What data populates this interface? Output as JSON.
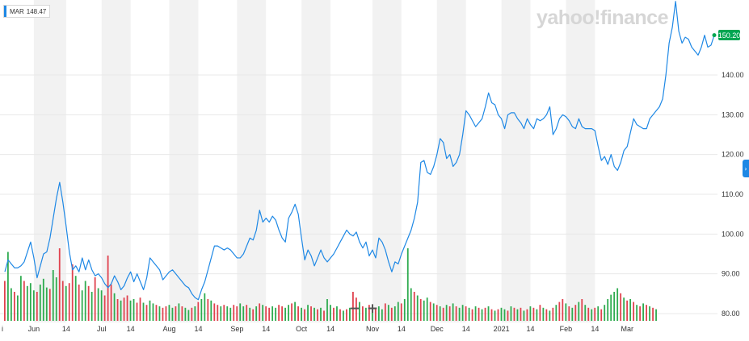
{
  "legend": {
    "symbol": "MAR",
    "value": "148.47"
  },
  "watermark": "yahoo!finance",
  "current_price": "150.20",
  "controls": {
    "zoom_out": "−",
    "zoom_in": "+",
    "expand": "›"
  },
  "colors": {
    "line": "#1e88e5",
    "vol_up": "#2eab4f",
    "vol_down": "#e0424e",
    "band": "#f2f2f2",
    "price_tag": "#00a651"
  },
  "chart_data": {
    "type": "line",
    "title": "",
    "xlabel": "",
    "ylabel": "",
    "ylim": [
      77,
      159
    ],
    "y_ticks": [
      "80.00",
      "90.00",
      "100.00",
      "110.00",
      "120.00",
      "130.00",
      "140.00"
    ],
    "x_ticks": [
      {
        "label": "i",
        "i": 0
      },
      {
        "label": "Jun",
        "i": 9
      },
      {
        "label": "14",
        "i": 19
      },
      {
        "label": "Jul",
        "i": 30
      },
      {
        "label": "14",
        "i": 39
      },
      {
        "label": "Aug",
        "i": 51
      },
      {
        "label": "14",
        "i": 60
      },
      {
        "label": "Sep",
        "i": 72
      },
      {
        "label": "14",
        "i": 81
      },
      {
        "label": "Oct",
        "i": 92
      },
      {
        "label": "14",
        "i": 101
      },
      {
        "label": "Nov",
        "i": 114
      },
      {
        "label": "14",
        "i": 123
      },
      {
        "label": "Dec",
        "i": 134
      },
      {
        "label": "14",
        "i": 143
      },
      {
        "label": "2021",
        "i": 154
      },
      {
        "label": "14",
        "i": 163
      },
      {
        "label": "Feb",
        "i": 174
      },
      {
        "label": "14",
        "i": 183
      },
      {
        "label": "Mar",
        "i": 193
      }
    ],
    "series": [
      {
        "values": [
          90.5,
          93.5,
          92.5,
          91.5,
          91.5,
          92.0,
          93.0,
          95.5,
          98.0,
          94.0,
          89.0,
          92.0,
          95.0,
          95.5,
          99.0,
          104.0,
          109.0,
          113.0,
          108.0,
          102.0,
          95.5,
          91.0,
          92.0,
          90.5,
          94.0,
          91.0,
          93.5,
          91.0,
          89.5,
          90.0,
          89.0,
          87.5,
          86.5,
          87.5,
          89.5,
          88.0,
          86.0,
          87.0,
          89.0,
          90.5,
          88.0,
          90.0,
          88.0,
          86.0,
          89.0,
          94.0,
          93.0,
          92.0,
          91.0,
          88.5,
          89.5,
          90.5,
          91.0,
          90.0,
          89.0,
          88.0,
          87.0,
          86.5,
          85.0,
          84.0,
          83.5,
          86.0,
          88.0,
          91.0,
          94.0,
          97.0,
          97.0,
          96.5,
          96.0,
          96.5,
          96.0,
          95.0,
          94.0,
          94.0,
          95.0,
          97.0,
          99.0,
          98.5,
          101.0,
          106.0,
          103.0,
          104.0,
          103.0,
          104.5,
          103.5,
          101.0,
          99.0,
          98.0,
          104.0,
          105.5,
          107.5,
          105.0,
          99.0,
          93.5,
          96.0,
          94.5,
          92.0,
          94.0,
          96.0,
          94.0,
          93.0,
          94.0,
          95.0,
          96.5,
          98.0,
          99.5,
          101.0,
          100.0,
          99.5,
          100.5,
          98.0,
          96.5,
          98.0,
          94.5,
          96.0,
          94.0,
          99.0,
          98.0,
          96.0,
          93.0,
          90.5,
          93.0,
          92.5,
          95.0,
          97.0,
          99.0,
          101.0,
          104.0,
          108.0,
          118.0,
          118.5,
          115.5,
          115.0,
          117.0,
          120.0,
          124.0,
          123.0,
          119.0,
          120.0,
          117.0,
          118.0,
          120.0,
          125.0,
          131.0,
          130.0,
          128.5,
          127.0,
          128.0,
          129.0,
          132.0,
          135.5,
          133.0,
          132.5,
          130.0,
          129.0,
          126.5,
          130.0,
          130.5,
          130.5,
          129.0,
          128.0,
          126.5,
          129.0,
          127.5,
          126.5,
          129.0,
          128.5,
          129.0,
          130.0,
          132.0,
          125.0,
          126.5,
          129.0,
          130.0,
          129.5,
          128.5,
          127.0,
          126.5,
          129.0,
          127.0,
          126.5,
          126.5,
          126.5,
          126.0,
          122.0,
          118.5,
          119.5,
          117.5,
          120.0,
          117.0,
          116.0,
          118.0,
          121.0,
          122.0,
          125.5,
          129.0,
          127.5,
          127.0,
          126.5,
          126.5,
          129.0,
          130.0,
          131.0,
          132.0,
          134.0,
          140.0,
          148.0,
          152.0,
          158.5,
          151.0,
          148.0,
          149.5,
          149.0,
          147.0,
          146.0,
          145.0,
          147.0,
          150.0,
          147.0,
          147.5,
          150.0
        ]
      }
    ],
    "volume": [
      [
        0.55,
        0
      ],
      [
        0.95,
        1
      ],
      [
        0.45,
        1
      ],
      [
        0.4,
        0
      ],
      [
        0.35,
        1
      ],
      [
        0.62,
        1
      ],
      [
        0.55,
        0
      ],
      [
        0.48,
        1
      ],
      [
        0.52,
        1
      ],
      [
        0.42,
        1
      ],
      [
        0.4,
        0
      ],
      [
        0.5,
        1
      ],
      [
        0.58,
        1
      ],
      [
        0.46,
        1
      ],
      [
        0.44,
        0
      ],
      [
        0.7,
        1
      ],
      [
        0.6,
        1
      ],
      [
        1.0,
        0
      ],
      [
        0.55,
        0
      ],
      [
        0.48,
        1
      ],
      [
        0.52,
        0
      ],
      [
        0.78,
        0
      ],
      [
        0.62,
        1
      ],
      [
        0.5,
        0
      ],
      [
        0.42,
        1
      ],
      [
        0.55,
        1
      ],
      [
        0.48,
        0
      ],
      [
        0.4,
        1
      ],
      [
        0.6,
        0
      ],
      [
        0.45,
        1
      ],
      [
        0.42,
        1
      ],
      [
        0.35,
        0
      ],
      [
        0.9,
        0
      ],
      [
        0.5,
        0
      ],
      [
        0.38,
        1
      ],
      [
        0.3,
        0
      ],
      [
        0.28,
        1
      ],
      [
        0.32,
        0
      ],
      [
        0.35,
        0
      ],
      [
        0.28,
        1
      ],
      [
        0.3,
        1
      ],
      [
        0.25,
        0
      ],
      [
        0.32,
        0
      ],
      [
        0.25,
        1
      ],
      [
        0.22,
        0
      ],
      [
        0.28,
        1
      ],
      [
        0.24,
        1
      ],
      [
        0.22,
        0
      ],
      [
        0.2,
        1
      ],
      [
        0.18,
        0
      ],
      [
        0.2,
        0
      ],
      [
        0.22,
        1
      ],
      [
        0.18,
        1
      ],
      [
        0.2,
        0
      ],
      [
        0.24,
        1
      ],
      [
        0.2,
        0
      ],
      [
        0.18,
        1
      ],
      [
        0.15,
        1
      ],
      [
        0.18,
        0
      ],
      [
        0.2,
        1
      ],
      [
        0.26,
        0
      ],
      [
        0.3,
        1
      ],
      [
        0.38,
        1
      ],
      [
        0.3,
        0
      ],
      [
        0.28,
        1
      ],
      [
        0.24,
        0
      ],
      [
        0.22,
        0
      ],
      [
        0.2,
        1
      ],
      [
        0.22,
        0
      ],
      [
        0.2,
        1
      ],
      [
        0.18,
        1
      ],
      [
        0.22,
        0
      ],
      [
        0.2,
        0
      ],
      [
        0.24,
        1
      ],
      [
        0.2,
        1
      ],
      [
        0.22,
        0
      ],
      [
        0.18,
        1
      ],
      [
        0.16,
        0
      ],
      [
        0.2,
        1
      ],
      [
        0.24,
        0
      ],
      [
        0.22,
        1
      ],
      [
        0.2,
        0
      ],
      [
        0.18,
        0
      ],
      [
        0.2,
        1
      ],
      [
        0.18,
        1
      ],
      [
        0.22,
        0
      ],
      [
        0.2,
        0
      ],
      [
        0.18,
        1
      ],
      [
        0.22,
        1
      ],
      [
        0.24,
        0
      ],
      [
        0.26,
        1
      ],
      [
        0.2,
        0
      ],
      [
        0.18,
        1
      ],
      [
        0.16,
        0
      ],
      [
        0.22,
        1
      ],
      [
        0.2,
        0
      ],
      [
        0.18,
        1
      ],
      [
        0.16,
        0
      ],
      [
        0.18,
        1
      ],
      [
        0.14,
        0
      ],
      [
        0.3,
        1
      ],
      [
        0.22,
        1
      ],
      [
        0.18,
        0
      ],
      [
        0.2,
        1
      ],
      [
        0.16,
        0
      ],
      [
        0.14,
        1
      ],
      [
        0.16,
        0
      ],
      [
        0.18,
        1
      ],
      [
        0.4,
        0
      ],
      [
        0.32,
        0
      ],
      [
        0.26,
        1
      ],
      [
        0.2,
        0
      ],
      [
        0.18,
        1
      ],
      [
        0.22,
        0
      ],
      [
        0.2,
        1
      ],
      [
        0.18,
        0
      ],
      [
        0.2,
        1
      ],
      [
        0.16,
        1
      ],
      [
        0.24,
        0
      ],
      [
        0.22,
        1
      ],
      [
        0.18,
        0
      ],
      [
        0.2,
        1
      ],
      [
        0.26,
        1
      ],
      [
        0.24,
        0
      ],
      [
        0.3,
        1
      ],
      [
        1.0,
        1
      ],
      [
        0.45,
        1
      ],
      [
        0.4,
        0
      ],
      [
        0.35,
        1
      ],
      [
        0.3,
        0
      ],
      [
        0.28,
        1
      ],
      [
        0.32,
        1
      ],
      [
        0.26,
        0
      ],
      [
        0.24,
        1
      ],
      [
        0.22,
        0
      ],
      [
        0.2,
        1
      ],
      [
        0.18,
        0
      ],
      [
        0.22,
        1
      ],
      [
        0.2,
        0
      ],
      [
        0.24,
        1
      ],
      [
        0.2,
        0
      ],
      [
        0.18,
        1
      ],
      [
        0.22,
        1
      ],
      [
        0.2,
        0
      ],
      [
        0.18,
        1
      ],
      [
        0.16,
        0
      ],
      [
        0.2,
        1
      ],
      [
        0.18,
        0
      ],
      [
        0.16,
        1
      ],
      [
        0.18,
        0
      ],
      [
        0.2,
        1
      ],
      [
        0.16,
        0
      ],
      [
        0.14,
        1
      ],
      [
        0.16,
        0
      ],
      [
        0.18,
        1
      ],
      [
        0.16,
        1
      ],
      [
        0.14,
        0
      ],
      [
        0.2,
        1
      ],
      [
        0.18,
        0
      ],
      [
        0.16,
        1
      ],
      [
        0.18,
        0
      ],
      [
        0.14,
        1
      ],
      [
        0.16,
        0
      ],
      [
        0.2,
        1
      ],
      [
        0.18,
        0
      ],
      [
        0.16,
        1
      ],
      [
        0.22,
        0
      ],
      [
        0.18,
        1
      ],
      [
        0.16,
        0
      ],
      [
        0.14,
        1
      ],
      [
        0.18,
        0
      ],
      [
        0.22,
        1
      ],
      [
        0.26,
        0
      ],
      [
        0.3,
        0
      ],
      [
        0.24,
        1
      ],
      [
        0.2,
        0
      ],
      [
        0.18,
        1
      ],
      [
        0.22,
        0
      ],
      [
        0.26,
        1
      ],
      [
        0.3,
        0
      ],
      [
        0.22,
        1
      ],
      [
        0.18,
        0
      ],
      [
        0.16,
        1
      ],
      [
        0.18,
        0
      ],
      [
        0.2,
        1
      ],
      [
        0.16,
        0
      ],
      [
        0.22,
        1
      ],
      [
        0.3,
        1
      ],
      [
        0.36,
        1
      ],
      [
        0.4,
        1
      ],
      [
        0.45,
        1
      ],
      [
        0.38,
        0
      ],
      [
        0.32,
        1
      ],
      [
        0.28,
        0
      ],
      [
        0.3,
        1
      ],
      [
        0.26,
        0
      ],
      [
        0.22,
        1
      ],
      [
        0.2,
        0
      ],
      [
        0.24,
        1
      ],
      [
        0.22,
        0
      ],
      [
        0.2,
        1
      ],
      [
        0.18,
        0
      ],
      [
        0.16,
        1
      ]
    ]
  }
}
